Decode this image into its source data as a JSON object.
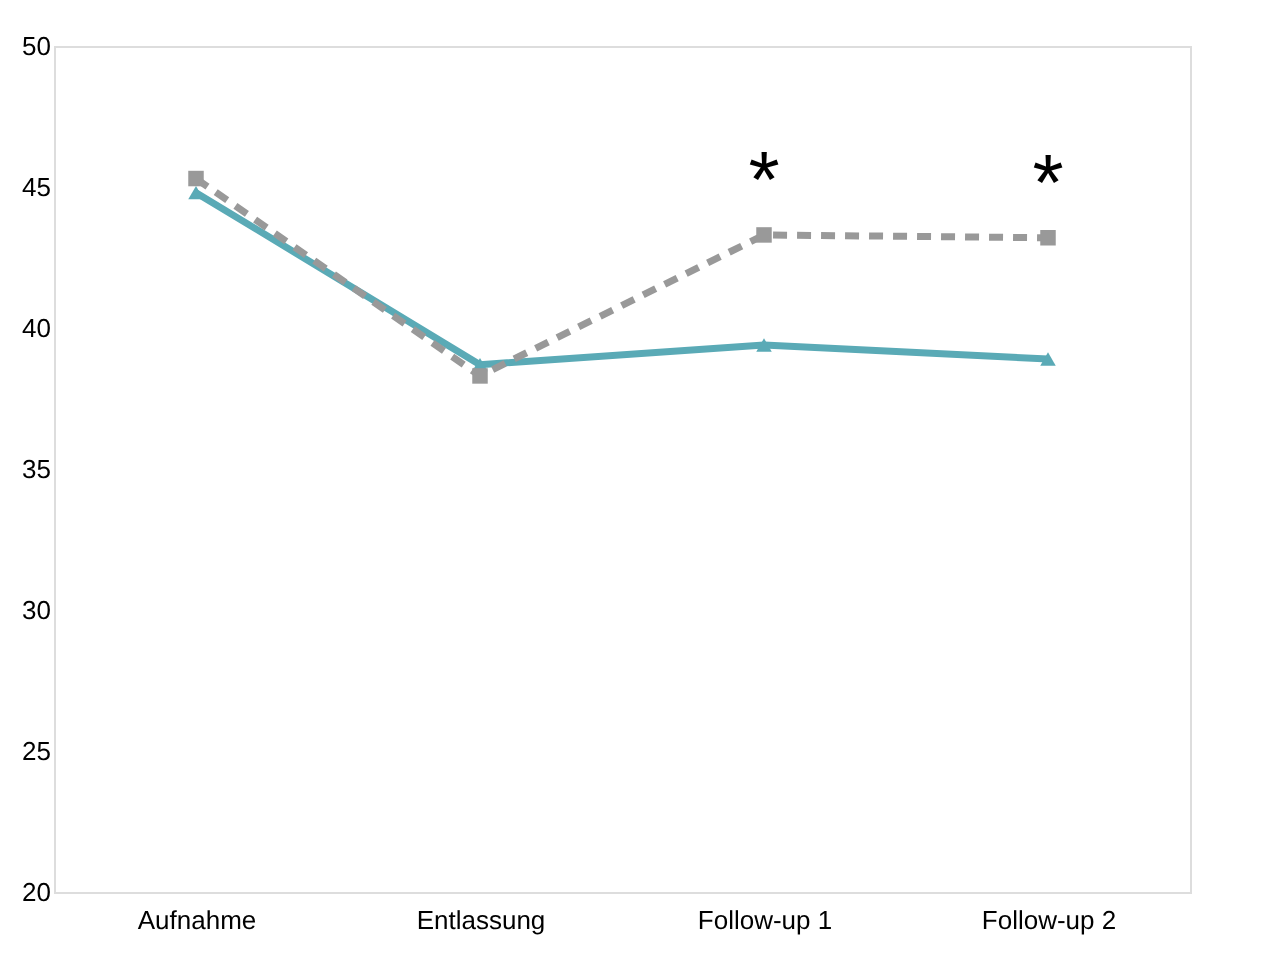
{
  "chart_data": {
    "type": "line",
    "categories": [
      "Aufnahme",
      "Entlassung",
      "Follow-up 1",
      "Follow-up 2"
    ],
    "series": [
      {
        "color": "#5aaab6",
        "values": [
          44.8,
          38.7,
          39.4,
          38.9
        ],
        "marker": "triangle",
        "line_style": "solid"
      },
      {
        "color": "#999999",
        "values": [
          45.3,
          38.3,
          43.3,
          43.2
        ],
        "marker": "square",
        "line_style": "dashed"
      }
    ],
    "ylim": [
      20,
      50
    ],
    "yticks": [
      20,
      25,
      30,
      35,
      40,
      45,
      50
    ],
    "grid": false,
    "annotations": [
      "*",
      "*"
    ]
  }
}
